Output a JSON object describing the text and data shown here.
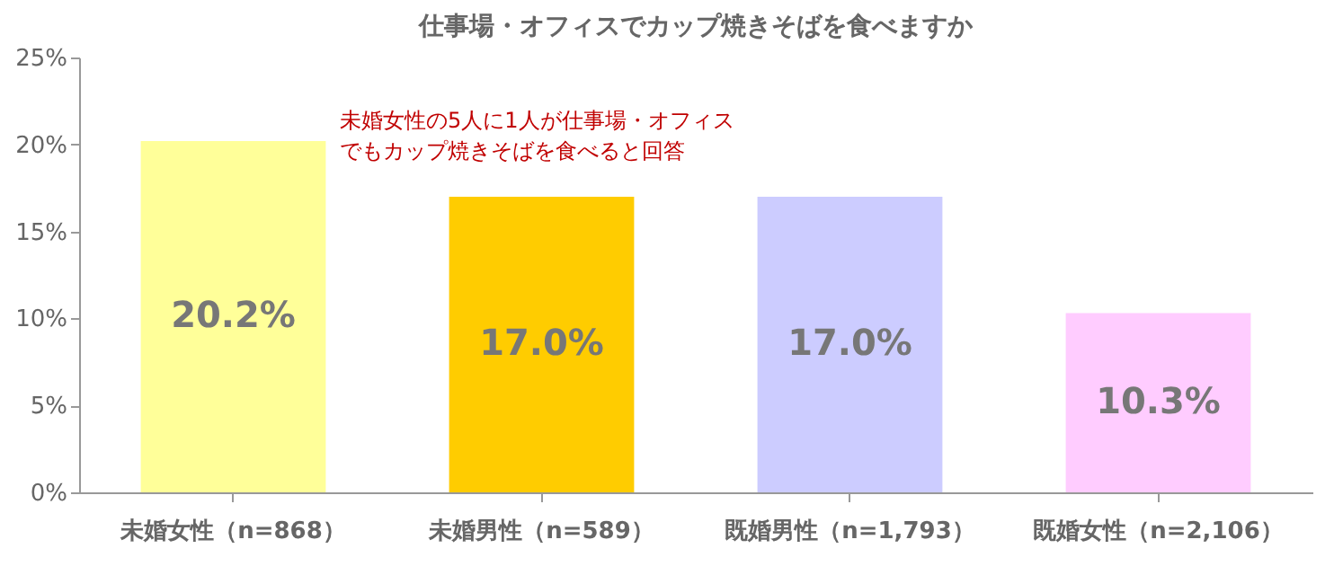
{
  "chart_data": {
    "type": "bar",
    "title": "仕事場・オフィスでカップ焼きそばを食べますか",
    "categories": [
      "未婚女性（n=868）",
      "未婚男性（n=589）",
      "既婚男性（n=1,793）",
      "既婚女性（n=2,106）"
    ],
    "values": [
      20.2,
      17.0,
      17.0,
      10.3
    ],
    "colors": [
      "#ffff99",
      "#ffcc00",
      "#ccccff",
      "#ffccff"
    ],
    "value_labels": [
      "20.2%",
      "17.0%",
      "17.0%",
      "10.3%"
    ],
    "ylim": [
      0,
      25
    ],
    "yticks": [
      {
        "value": 0,
        "label": "0%"
      },
      {
        "value": 5,
        "label": "5%"
      },
      {
        "value": 10,
        "label": "10%"
      },
      {
        "value": 15,
        "label": "15%"
      },
      {
        "value": 20,
        "label": "20%"
      },
      {
        "value": 25,
        "label": "25%"
      }
    ],
    "annotations": [
      "未婚女性の5人に1人が仕事場・オフィスでもカップ焼きそばを食べると回答"
    ]
  }
}
